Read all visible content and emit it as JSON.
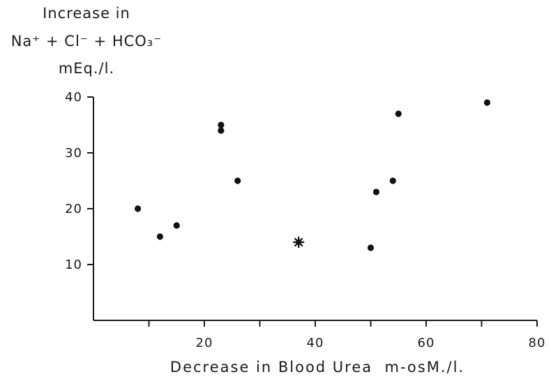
{
  "chart_data": {
    "type": "scatter",
    "ylabel_lines": [
      "Increase in",
      "Na⁺ + Cl⁻ + HCO₃⁻",
      "mEq./l."
    ],
    "xlabel": "Decrease in Blood Urea  m-osM./l.",
    "xlim": [
      0,
      80
    ],
    "ylim": [
      0,
      40
    ],
    "x_ticks": [
      20,
      40,
      60,
      80
    ],
    "x_minor_ticks": [
      10,
      30,
      50,
      70
    ],
    "y_ticks": [
      10,
      20,
      30,
      40
    ],
    "points": [
      {
        "x": 8,
        "y": 20,
        "marker": "dot"
      },
      {
        "x": 12,
        "y": 15,
        "marker": "dot"
      },
      {
        "x": 15,
        "y": 17,
        "marker": "dot"
      },
      {
        "x": 23,
        "y": 35,
        "marker": "dot"
      },
      {
        "x": 23,
        "y": 34,
        "marker": "dot"
      },
      {
        "x": 26,
        "y": 25,
        "marker": "dot"
      },
      {
        "x": 37,
        "y": 14,
        "marker": "star"
      },
      {
        "x": 50,
        "y": 13,
        "marker": "dot"
      },
      {
        "x": 51,
        "y": 23,
        "marker": "dot"
      },
      {
        "x": 54,
        "y": 25,
        "marker": "dot"
      },
      {
        "x": 55,
        "y": 37,
        "marker": "dot"
      },
      {
        "x": 71,
        "y": 39,
        "marker": "dot"
      }
    ],
    "grid": false,
    "legend": "none"
  }
}
